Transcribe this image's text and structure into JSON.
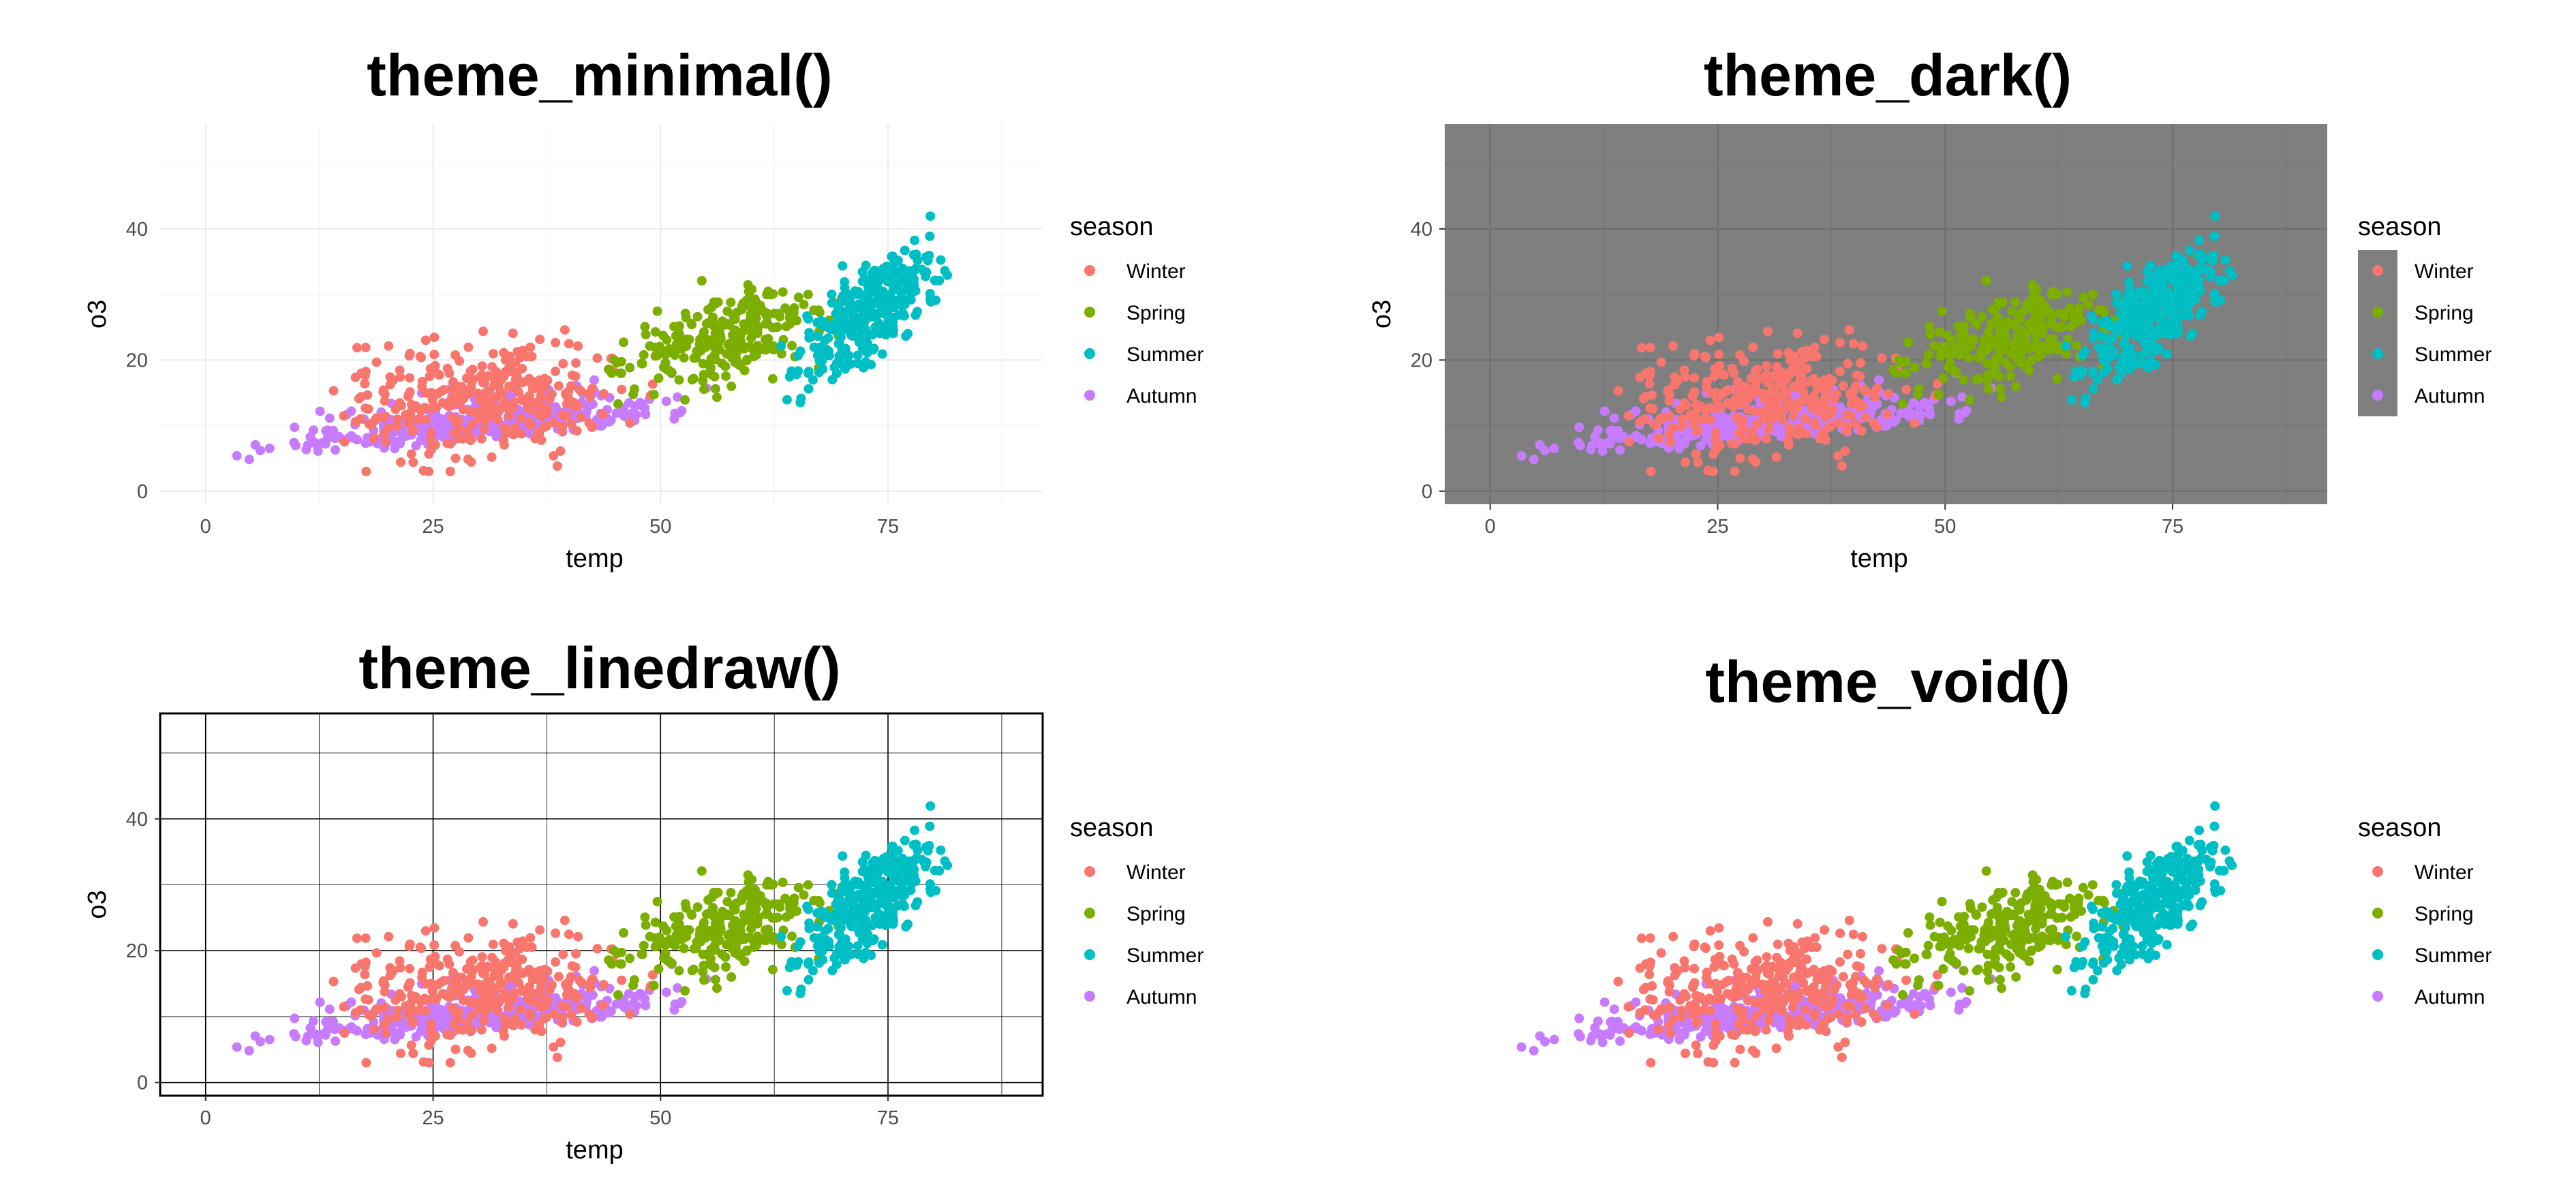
{
  "chart_data": [
    {
      "type": "scatter",
      "title": "theme_minimal()",
      "theme": "minimal",
      "xlabel": "temp",
      "ylabel": "o3",
      "xlim": [
        -5,
        92
      ],
      "ylim": [
        -2,
        56
      ],
      "xticks": [
        0,
        25,
        50,
        75
      ],
      "yticks": [
        0,
        20,
        40
      ],
      "grid": true,
      "legend_title": "season",
      "legend_position": "right",
      "series": [
        {
          "name": "Winter",
          "color": "#F8766D"
        },
        {
          "name": "Spring",
          "color": "#7CAE00"
        },
        {
          "name": "Summer",
          "color": "#00BFC4"
        },
        {
          "name": "Autumn",
          "color": "#C77CFF"
        }
      ]
    },
    {
      "type": "scatter",
      "title": "theme_dark()",
      "theme": "dark",
      "xlabel": "temp",
      "ylabel": "o3",
      "xlim": [
        -5,
        92
      ],
      "ylim": [
        -2,
        56
      ],
      "xticks": [
        0,
        25,
        50,
        75
      ],
      "yticks": [
        0,
        20,
        40
      ],
      "grid": true,
      "legend_title": "season",
      "legend_position": "right",
      "series": [
        {
          "name": "Winter",
          "color": "#F8766D"
        },
        {
          "name": "Spring",
          "color": "#7CAE00"
        },
        {
          "name": "Summer",
          "color": "#00BFC4"
        },
        {
          "name": "Autumn",
          "color": "#C77CFF"
        }
      ]
    },
    {
      "type": "scatter",
      "title": "theme_linedraw()",
      "theme": "linedraw",
      "xlabel": "temp",
      "ylabel": "o3",
      "xlim": [
        -5,
        92
      ],
      "ylim": [
        -2,
        56
      ],
      "xticks": [
        0,
        25,
        50,
        75
      ],
      "yticks": [
        0,
        20,
        40
      ],
      "grid": true,
      "legend_title": "season",
      "legend_position": "right",
      "series": [
        {
          "name": "Winter",
          "color": "#F8766D"
        },
        {
          "name": "Spring",
          "color": "#7CAE00"
        },
        {
          "name": "Summer",
          "color": "#00BFC4"
        },
        {
          "name": "Autumn",
          "color": "#C77CFF"
        }
      ]
    },
    {
      "type": "scatter",
      "title": "theme_void()",
      "theme": "void",
      "xlabel": "",
      "ylabel": "",
      "xlim": [
        -5,
        92
      ],
      "ylim": [
        -2,
        56
      ],
      "xticks": [],
      "yticks": [],
      "grid": false,
      "legend_title": "season",
      "legend_position": "right",
      "series": [
        {
          "name": "Winter",
          "color": "#F8766D"
        },
        {
          "name": "Spring",
          "color": "#7CAE00"
        },
        {
          "name": "Summer",
          "color": "#00BFC4"
        },
        {
          "name": "Autumn",
          "color": "#C77CFF"
        }
      ]
    }
  ]
}
